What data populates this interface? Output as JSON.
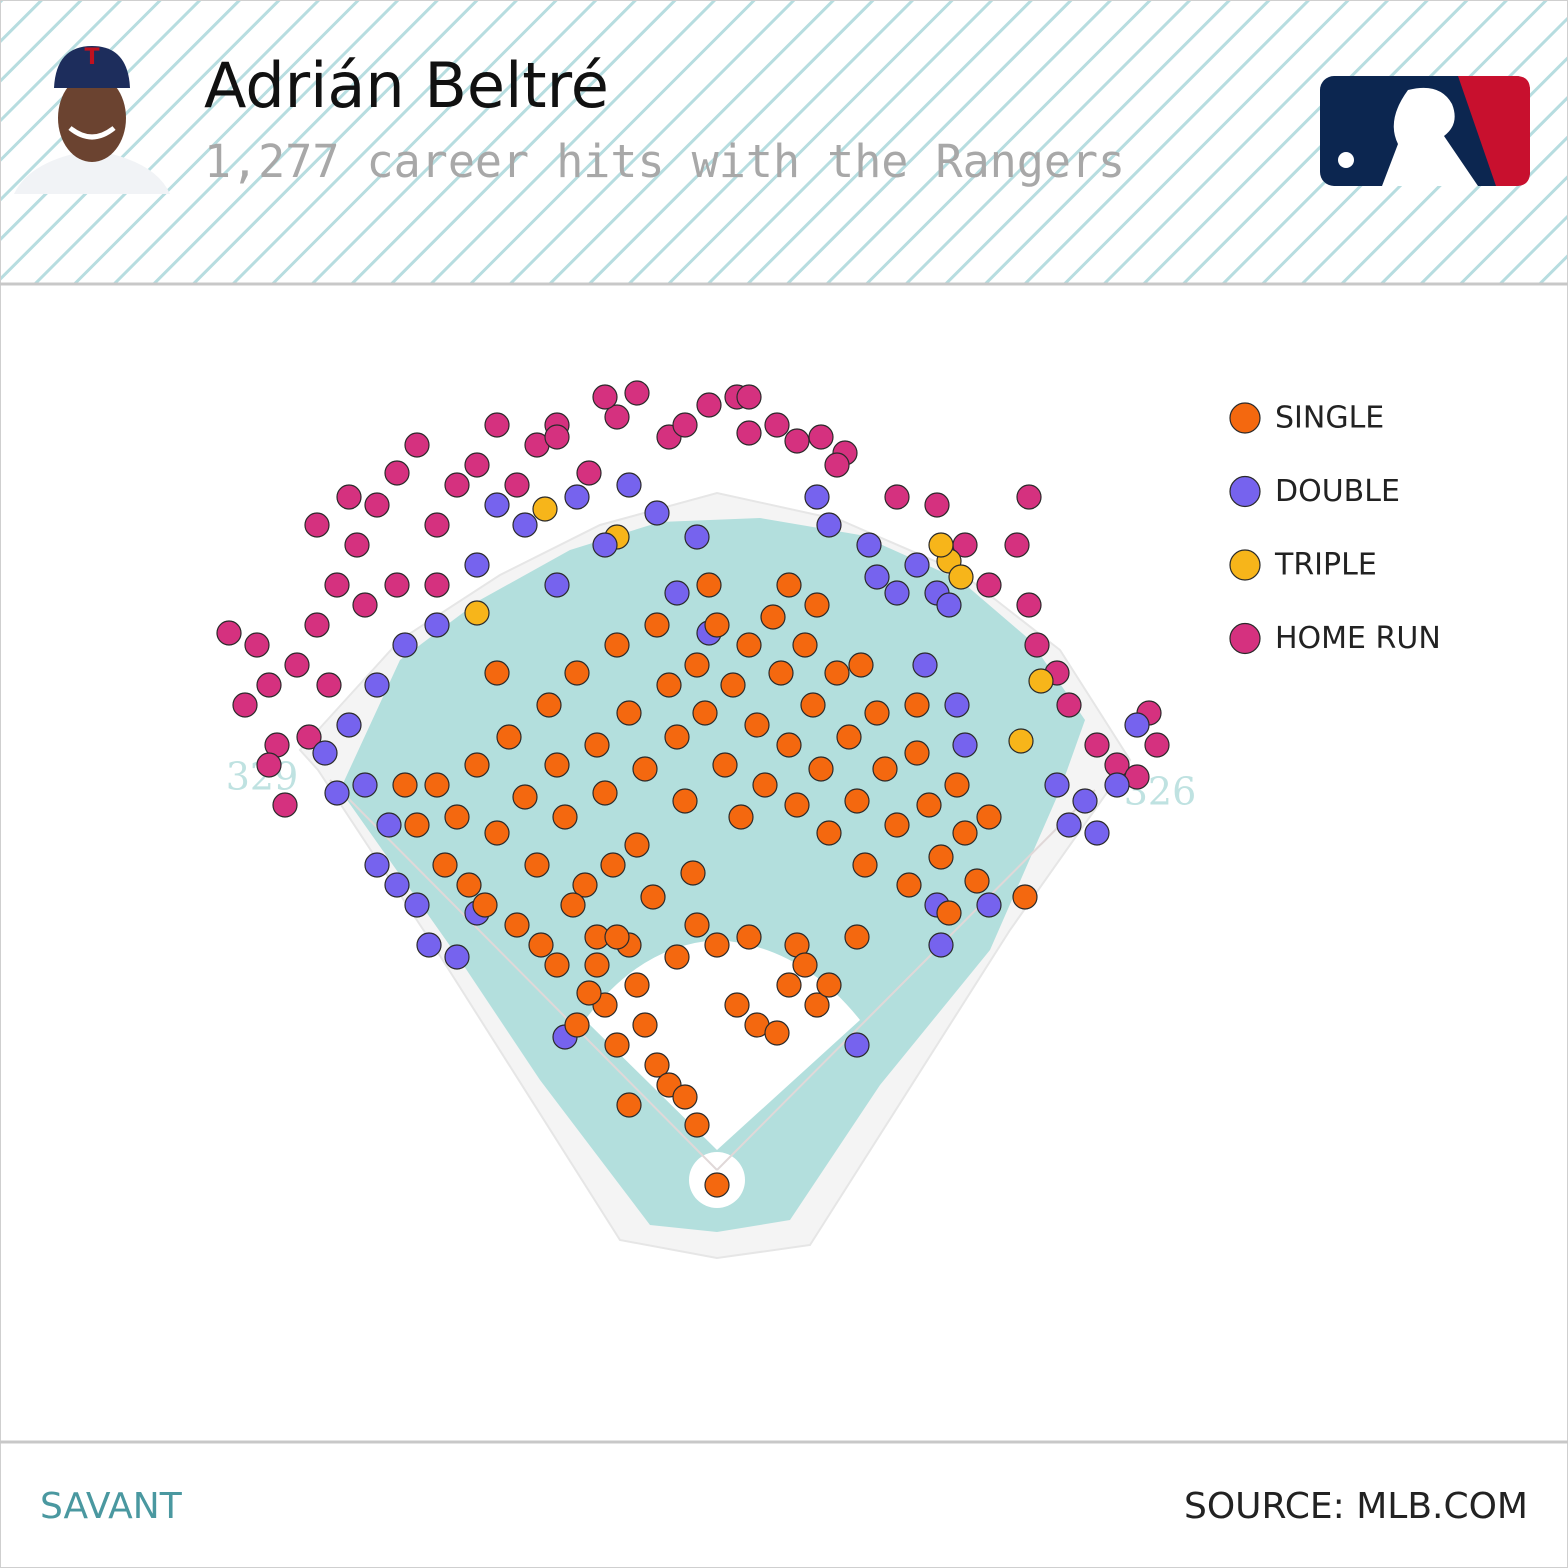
{
  "chart_data": {
    "type": "scatter",
    "title": "Adrián Beltré",
    "subtitle": "1,277 career hits with the Rangers",
    "distance_labels": [
      329,
      326
    ],
    "xlim": [
      -130,
      130
    ],
    "ylim": [
      0,
      230
    ],
    "series": [
      {
        "name": "SINGLE",
        "color": "#f4680f",
        "x": [
          -70,
          -65,
          -60,
          -55,
          -52,
          -48,
          -45,
          -42,
          -40,
          -38,
          -35,
          -33,
          -30,
          -28,
          -25,
          -22,
          -20,
          -18,
          -15,
          -12,
          -10,
          -8,
          -5,
          -3,
          0,
          2,
          4,
          6,
          8,
          10,
          12,
          14,
          16,
          18,
          20,
          22,
          24,
          26,
          28,
          30,
          33,
          35,
          37,
          40,
          42,
          45,
          48,
          50,
          53,
          56,
          58,
          60,
          62,
          65,
          68,
          -68,
          -62,
          -58,
          -50,
          -44,
          -36,
          -30,
          -26,
          -16,
          -6,
          25,
          -55,
          -2,
          18,
          36,
          50,
          77,
          -75,
          -78,
          -30,
          -28,
          -25,
          -22,
          -20,
          -18,
          -15,
          -12,
          -10,
          -25,
          -32,
          -35,
          -8,
          5,
          10,
          15,
          18,
          20,
          22,
          25,
          28,
          -5,
          0,
          8,
          -40,
          35,
          0,
          -22,
          -5
        ],
        "y": [
          100,
          92,
          105,
          88,
          112,
          97,
          80,
          120,
          105,
          92,
          128,
          75,
          110,
          98,
          135,
          118,
          85,
          104,
          140,
          125,
          112,
          96,
          130,
          118,
          140,
          105,
          125,
          92,
          135,
          115,
          100,
          142,
          128,
          110,
          95,
          135,
          120,
          104,
          88,
          128,
          112,
          96,
          80,
          118,
          104,
          90,
          75,
          108,
          95,
          82,
          68,
          100,
          88,
          76,
          92,
          80,
          75,
          70,
          65,
          60,
          70,
          62,
          80,
          72,
          78,
          145,
          128,
          150,
          150,
          130,
          120,
          72,
          90,
          100,
          55,
          45,
          35,
          60,
          50,
          40,
          30,
          25,
          57,
          62,
          48,
          40,
          22,
          45,
          40,
          38,
          50,
          60,
          55,
          45,
          50,
          65,
          60,
          62,
          55,
          62,
          0,
          20,
          15
        ]
      },
      {
        "name": "DOUBLE",
        "color": "#7663ee",
        "x": [
          -98,
          -95,
          -92,
          -88,
          -85,
          -82,
          -80,
          -75,
          -72,
          -65,
          -60,
          -78,
          -70,
          -60,
          -55,
          -48,
          -40,
          -35,
          -28,
          -22,
          -15,
          -10,
          -5,
          -2,
          25,
          28,
          38,
          40,
          45,
          50,
          55,
          58,
          52,
          60,
          62,
          85,
          88,
          92,
          95,
          100,
          105,
          68,
          56,
          55,
          -85,
          -38,
          35
        ],
        "y": [
          108,
          98,
          115,
          100,
          125,
          90,
          75,
          70,
          60,
          57,
          68,
          135,
          140,
          155,
          170,
          165,
          150,
          172,
          160,
          175,
          168,
          148,
          162,
          138,
          172,
          165,
          160,
          152,
          148,
          155,
          148,
          145,
          130,
          120,
          110,
          100,
          90,
          96,
          88,
          100,
          115,
          70,
          60,
          70,
          80,
          37,
          35
        ]
      },
      {
        "name": "TRIPLE",
        "color": "#f7b51a",
        "x": [
          -43,
          -60,
          -25,
          58,
          61,
          81,
          76,
          56
        ],
        "y": [
          169,
          143,
          162,
          156,
          152,
          126,
          111,
          160
        ]
      },
      {
        "name": "HOME RUN",
        "color": "#d5317f",
        "x": [
          -122,
          -115,
          -118,
          -112,
          -105,
          -110,
          -100,
          -95,
          -90,
          -85,
          -80,
          -92,
          -100,
          -88,
          -75,
          -70,
          -65,
          -60,
          -55,
          -45,
          -40,
          -32,
          -40,
          -20,
          -25,
          -12,
          -8,
          -2,
          5,
          8,
          -28,
          8,
          15,
          20,
          32,
          45,
          55,
          62,
          68,
          75,
          78,
          80,
          85,
          88,
          95,
          100,
          108,
          110,
          105,
          -112,
          -108,
          -102,
          -97,
          -80,
          -70,
          -50,
          26,
          30,
          78
        ],
        "y": [
          138,
          135,
          120,
          125,
          130,
          110,
          140,
          150,
          160,
          170,
          178,
          172,
          165,
          145,
          185,
          165,
          175,
          180,
          190,
          185,
          190,
          178,
          187,
          198,
          192,
          187,
          190,
          195,
          197,
          188,
          197,
          197,
          190,
          186,
          183,
          172,
          170,
          160,
          150,
          160,
          145,
          135,
          128,
          120,
          110,
          105,
          118,
          110,
          102,
          105,
          95,
          112,
          125,
          150,
          150,
          175,
          187,
          180,
          172
        ]
      }
    ]
  },
  "footer": {
    "brand": "SAVANT",
    "source": "SOURCE: MLB.COM"
  }
}
